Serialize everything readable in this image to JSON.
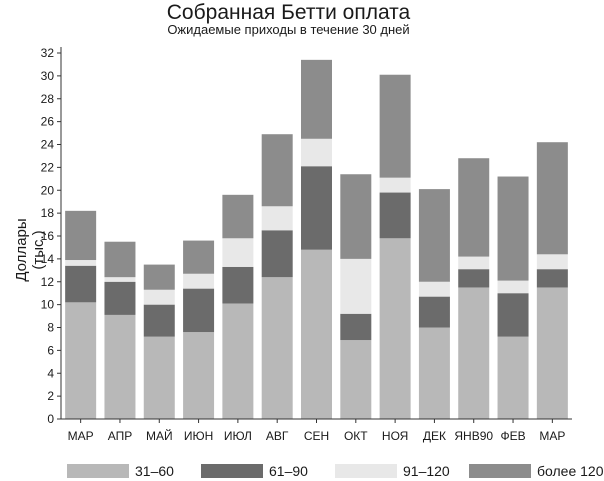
{
  "chart_data": {
    "type": "bar",
    "stacked": true,
    "title": "Собранная Бетти оплата",
    "subtitle": "Ожидаемые приходы в течение 30 дней",
    "xlabel": "",
    "ylabel": [
      "Доллары",
      "(тыс.)"
    ],
    "ylim": [
      0,
      32
    ],
    "yticks": [
      0,
      2,
      4,
      6,
      8,
      10,
      12,
      14,
      16,
      18,
      20,
      22,
      24,
      26,
      28,
      30,
      32
    ],
    "grid": false,
    "legend_position": "bottom",
    "categories": [
      "МАР",
      "АПР",
      "МАЙ",
      "ИЮН",
      "ИЮЛ",
      "АВГ",
      "СЕН",
      "ОКТ",
      "НОЯ",
      "ДЕК",
      "ЯНВ90",
      "ФЕВ",
      "МАР"
    ],
    "series": [
      {
        "name": "31–60",
        "color": "#b8b8b8",
        "values": [
          10.2,
          9.1,
          7.2,
          7.6,
          10.1,
          12.4,
          14.8,
          6.9,
          15.8,
          8.0,
          11.5,
          7.2,
          11.5
        ]
      },
      {
        "name": "61–90",
        "color": "#6b6b6b",
        "values": [
          3.2,
          2.9,
          2.8,
          3.8,
          3.2,
          4.1,
          7.3,
          2.3,
          4.0,
          2.7,
          1.6,
          3.8,
          1.6
        ]
      },
      {
        "name": "91–120",
        "color": "#e8e8e8",
        "values": [
          0.5,
          0.4,
          1.3,
          1.3,
          2.5,
          2.1,
          2.4,
          4.8,
          1.3,
          1.3,
          1.1,
          1.1,
          1.3
        ]
      },
      {
        "name": "более 120",
        "color": "#8c8c8c",
        "values": [
          4.3,
          3.1,
          2.2,
          2.9,
          3.8,
          6.3,
          6.9,
          7.4,
          9.0,
          8.1,
          8.6,
          9.1,
          9.8
        ]
      }
    ]
  }
}
